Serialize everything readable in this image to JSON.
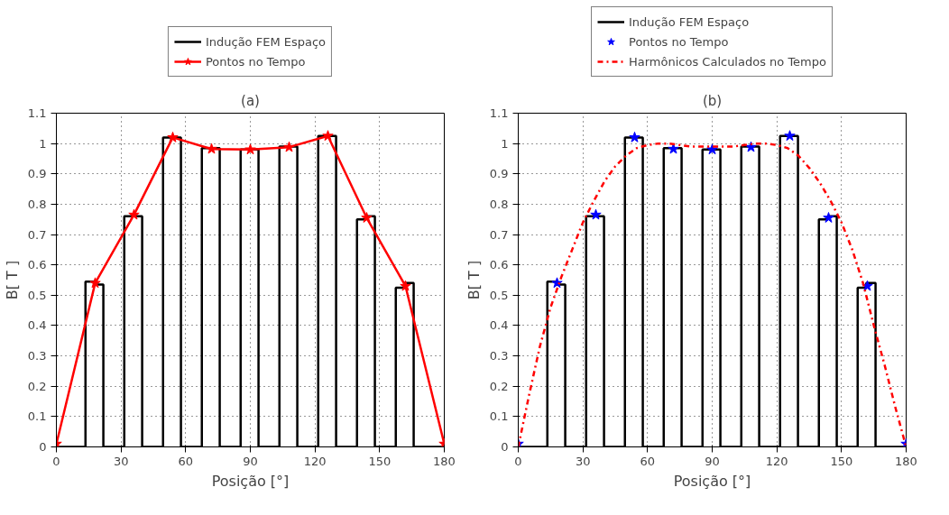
{
  "chart_data": [
    {
      "type": "line",
      "title": "(a)",
      "xlabel": "Posição [°]",
      "ylabel": "B[ T ]",
      "xlim": [
        0,
        180
      ],
      "ylim": [
        0,
        1.1
      ],
      "xticks": [
        0,
        30,
        60,
        90,
        120,
        150,
        180
      ],
      "yticks": [
        0,
        0.1,
        0.2,
        0.3,
        0.4,
        0.5,
        0.6,
        0.7,
        0.8,
        0.9,
        1,
        1.1
      ],
      "grid": true,
      "legend": "top",
      "series": [
        {
          "name": "Indução FEM Espaço",
          "type": "step",
          "color": "#000000",
          "marker": "none",
          "line_style": "solid",
          "x": [
            0,
            13.5,
            17.5,
            21.8,
            31.5,
            39.8,
            49.5,
            57.8,
            67.5,
            75.8,
            85.5,
            93.8,
            103.5,
            111.8,
            121.5,
            129.8,
            139.5,
            143.5,
            147.8,
            157.5,
            161.5,
            165.8,
            180
          ],
          "values": [
            0,
            0.545,
            0.535,
            0,
            0.76,
            0,
            1.02,
            0,
            0.985,
            0,
            0.98,
            0,
            0.99,
            0,
            1.025,
            0,
            0.75,
            0.76,
            0,
            0.525,
            0.54,
            0,
            0
          ]
        },
        {
          "name": "Pontos no Tempo",
          "color": "#ff0000",
          "marker": "star",
          "line_style": "solid",
          "x": [
            0,
            18,
            36,
            54,
            72,
            90,
            108,
            126,
            144,
            162,
            180
          ],
          "values": [
            0.01,
            0.54,
            0.765,
            1.02,
            0.982,
            0.98,
            0.988,
            1.025,
            0.755,
            0.53,
            0.01
          ]
        }
      ]
    },
    {
      "type": "line",
      "title": "(b)",
      "xlabel": "Posição [°]",
      "ylabel": "B[ T ]",
      "xlim": [
        0,
        180
      ],
      "ylim": [
        0,
        1.1
      ],
      "xticks": [
        0,
        30,
        60,
        90,
        120,
        150,
        180
      ],
      "yticks": [
        0,
        0.1,
        0.2,
        0.3,
        0.4,
        0.5,
        0.6,
        0.7,
        0.8,
        0.9,
        1,
        1.1
      ],
      "grid": true,
      "legend": "top",
      "series": [
        {
          "name": "Indução FEM Espaço",
          "type": "step",
          "color": "#000000",
          "marker": "none",
          "line_style": "solid",
          "x": [
            0,
            13.5,
            17.5,
            21.8,
            31.5,
            39.8,
            49.5,
            57.8,
            67.5,
            75.8,
            85.5,
            93.8,
            103.5,
            111.8,
            121.5,
            129.8,
            139.5,
            143.5,
            147.8,
            157.5,
            161.5,
            165.8,
            180
          ],
          "values": [
            0,
            0.545,
            0.535,
            0,
            0.76,
            0,
            1.02,
            0,
            0.985,
            0,
            0.98,
            0,
            0.99,
            0,
            1.025,
            0,
            0.75,
            0.76,
            0,
            0.525,
            0.54,
            0,
            0
          ]
        },
        {
          "name": "Pontos no Tempo",
          "type": "scatter",
          "color": "#0000ff",
          "marker": "star",
          "x": [
            0,
            18,
            36,
            54,
            72,
            90,
            108,
            126,
            144,
            162,
            180
          ],
          "values": [
            0.01,
            0.54,
            0.765,
            1.02,
            0.982,
            0.98,
            0.988,
            1.025,
            0.755,
            0.53,
            0.01
          ]
        },
        {
          "name": "Harmônicos Calculados no Tempo",
          "color": "#ff0000",
          "marker": "none",
          "line_style": "dashdot",
          "x": [
            0,
            5,
            10,
            15,
            20,
            25,
            30,
            35,
            40,
            45,
            50,
            55,
            60,
            65,
            70,
            75,
            80,
            85,
            90,
            95,
            100,
            105,
            110,
            115,
            120,
            125,
            130,
            135,
            140,
            145,
            150,
            155,
            160,
            165,
            170,
            175,
            180
          ],
          "values": [
            0,
            0.17,
            0.33,
            0.46,
            0.56,
            0.65,
            0.74,
            0.81,
            0.875,
            0.925,
            0.96,
            0.985,
            0.995,
            1.0,
            1.0,
            0.995,
            0.99,
            0.99,
            0.99,
            0.99,
            0.99,
            0.995,
            1.0,
            1.0,
            0.995,
            0.985,
            0.96,
            0.92,
            0.87,
            0.81,
            0.74,
            0.65,
            0.54,
            0.4,
            0.27,
            0.13,
            0
          ]
        }
      ]
    }
  ]
}
